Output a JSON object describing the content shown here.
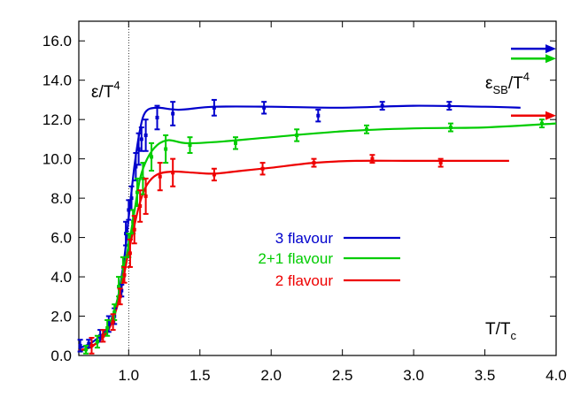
{
  "chart_data": {
    "type": "line",
    "title": "",
    "xlabel": "T/T_c",
    "ylabel": "ε/T^4",
    "xlim": [
      0.65,
      4.0
    ],
    "ylim": [
      0.0,
      17.0
    ],
    "x_ticks": [
      "1.0",
      "1.5",
      "2.0",
      "2.5",
      "3.0",
      "3.5",
      "4.0"
    ],
    "x_tick_values": [
      1.0,
      1.5,
      2.0,
      2.5,
      3.0,
      3.5,
      4.0
    ],
    "y_ticks": [
      "0.0",
      "2.0",
      "4.0",
      "6.0",
      "8.0",
      "10.0",
      "12.0",
      "14.0",
      "16.0"
    ],
    "y_tick_values": [
      0,
      2,
      4,
      6,
      8,
      10,
      12,
      14,
      16
    ],
    "tc_line": 1.0,
    "sb_label": {
      "main": "ε",
      "sub": "SB",
      "tail": "/T",
      "sup": "4"
    },
    "y_label_parts": {
      "main": "ε/T",
      "sup": "4"
    },
    "x_label_parts": {
      "main": "T/T",
      "sub": "c"
    },
    "legend_position": "center",
    "series": [
      {
        "name": "3 flavour",
        "color": "#0000cc",
        "sb_limit": 15.6,
        "curve": [
          [
            0.65,
            0.35
          ],
          [
            0.75,
            0.7
          ],
          [
            0.85,
            1.4
          ],
          [
            0.92,
            2.8
          ],
          [
            0.97,
            5.0
          ],
          [
            1.0,
            7.0
          ],
          [
            1.04,
            9.6
          ],
          [
            1.08,
            11.5
          ],
          [
            1.12,
            12.4
          ],
          [
            1.2,
            12.6
          ],
          [
            1.35,
            12.5
          ],
          [
            1.6,
            12.65
          ],
          [
            2.0,
            12.65
          ],
          [
            2.5,
            12.6
          ],
          [
            3.0,
            12.7
          ],
          [
            3.5,
            12.65
          ],
          [
            3.75,
            12.6
          ]
        ],
        "points": [
          {
            "x": 0.66,
            "y": 0.5,
            "err": 0.3
          },
          {
            "x": 0.72,
            "y": 0.6,
            "err": 0.2
          },
          {
            "x": 0.8,
            "y": 1.0,
            "err": 0.3
          },
          {
            "x": 0.86,
            "y": 1.6,
            "err": 0.4
          },
          {
            "x": 0.9,
            "y": 2.0,
            "err": 0.4
          },
          {
            "x": 0.95,
            "y": 3.3,
            "err": 0.3
          },
          {
            "x": 0.98,
            "y": 6.2,
            "err": 0.6
          },
          {
            "x": 1.0,
            "y": 7.4,
            "err": 0.5
          },
          {
            "x": 1.02,
            "y": 8.0,
            "err": 0.6
          },
          {
            "x": 1.05,
            "y": 9.6,
            "err": 0.7
          },
          {
            "x": 1.07,
            "y": 10.5,
            "err": 0.8
          },
          {
            "x": 1.09,
            "y": 11.0,
            "err": 0.6
          },
          {
            "x": 1.12,
            "y": 11.2,
            "err": 0.8
          },
          {
            "x": 1.2,
            "y": 12.1,
            "err": 0.6
          },
          {
            "x": 1.31,
            "y": 12.3,
            "err": 0.6
          },
          {
            "x": 1.6,
            "y": 12.6,
            "err": 0.4
          },
          {
            "x": 1.95,
            "y": 12.6,
            "err": 0.3
          },
          {
            "x": 2.33,
            "y": 12.2,
            "err": 0.3
          },
          {
            "x": 2.78,
            "y": 12.7,
            "err": 0.2
          },
          {
            "x": 3.25,
            "y": 12.7,
            "err": 0.2
          }
        ]
      },
      {
        "name": "2+1 flavour",
        "color": "#00cc00",
        "sb_limit": 15.1,
        "curve": [
          [
            0.65,
            0.2
          ],
          [
            0.75,
            0.5
          ],
          [
            0.85,
            1.3
          ],
          [
            0.92,
            2.8
          ],
          [
            0.97,
            4.6
          ],
          [
            1.0,
            5.6
          ],
          [
            1.04,
            7.3
          ],
          [
            1.08,
            9.0
          ],
          [
            1.13,
            10.0
          ],
          [
            1.2,
            10.7
          ],
          [
            1.28,
            10.95
          ],
          [
            1.4,
            10.8
          ],
          [
            1.6,
            10.85
          ],
          [
            2.0,
            11.1
          ],
          [
            2.5,
            11.4
          ],
          [
            3.0,
            11.55
          ],
          [
            3.5,
            11.6
          ],
          [
            4.0,
            11.8
          ]
        ],
        "points": [
          {
            "x": 0.7,
            "y": 0.3,
            "err": 0.2
          },
          {
            "x": 0.78,
            "y": 0.7,
            "err": 0.3
          },
          {
            "x": 0.85,
            "y": 1.4,
            "err": 0.4
          },
          {
            "x": 0.9,
            "y": 2.2,
            "err": 0.4
          },
          {
            "x": 0.93,
            "y": 3.5,
            "err": 0.5
          },
          {
            "x": 0.96,
            "y": 4.5,
            "err": 0.5
          },
          {
            "x": 1.0,
            "y": 5.6,
            "err": 0.6
          },
          {
            "x": 1.03,
            "y": 6.8,
            "err": 0.6
          },
          {
            "x": 1.06,
            "y": 8.3,
            "err": 0.7
          },
          {
            "x": 1.1,
            "y": 9.0,
            "err": 0.8
          },
          {
            "x": 1.16,
            "y": 10.1,
            "err": 0.7
          },
          {
            "x": 1.26,
            "y": 10.5,
            "err": 0.7
          },
          {
            "x": 1.43,
            "y": 10.7,
            "err": 0.4
          },
          {
            "x": 1.75,
            "y": 10.8,
            "err": 0.3
          },
          {
            "x": 2.18,
            "y": 11.2,
            "err": 0.3
          },
          {
            "x": 2.67,
            "y": 11.5,
            "err": 0.2
          },
          {
            "x": 3.26,
            "y": 11.6,
            "err": 0.2
          },
          {
            "x": 3.9,
            "y": 11.8,
            "err": 0.2
          }
        ]
      },
      {
        "name": "2 flavour",
        "color": "#ee0000",
        "sb_limit": 12.2,
        "curve": [
          [
            0.65,
            0.25
          ],
          [
            0.75,
            0.5
          ],
          [
            0.85,
            1.2
          ],
          [
            0.92,
            2.5
          ],
          [
            0.97,
            4.2
          ],
          [
            1.0,
            5.3
          ],
          [
            1.04,
            6.6
          ],
          [
            1.08,
            7.8
          ],
          [
            1.13,
            8.7
          ],
          [
            1.2,
            9.2
          ],
          [
            1.3,
            9.35
          ],
          [
            1.45,
            9.3
          ],
          [
            1.6,
            9.25
          ],
          [
            1.8,
            9.4
          ],
          [
            2.0,
            9.55
          ],
          [
            2.3,
            9.8
          ],
          [
            2.6,
            9.9
          ],
          [
            3.0,
            9.9
          ],
          [
            3.5,
            9.9
          ],
          [
            3.67,
            9.9
          ]
        ],
        "points": [
          {
            "x": 0.74,
            "y": 0.5,
            "err": 0.4
          },
          {
            "x": 0.82,
            "y": 1.0,
            "err": 0.3
          },
          {
            "x": 0.89,
            "y": 1.7,
            "err": 0.4
          },
          {
            "x": 0.94,
            "y": 3.0,
            "err": 0.4
          },
          {
            "x": 0.97,
            "y": 4.1,
            "err": 0.4
          },
          {
            "x": 1.01,
            "y": 5.2,
            "err": 0.7
          },
          {
            "x": 1.04,
            "y": 6.4,
            "err": 0.7
          },
          {
            "x": 1.08,
            "y": 7.6,
            "err": 0.8
          },
          {
            "x": 1.12,
            "y": 8.1,
            "err": 0.9
          },
          {
            "x": 1.22,
            "y": 9.1,
            "err": 0.7
          },
          {
            "x": 1.31,
            "y": 9.3,
            "err": 0.7
          },
          {
            "x": 1.6,
            "y": 9.2,
            "err": 0.3
          },
          {
            "x": 1.94,
            "y": 9.5,
            "err": 0.3
          },
          {
            "x": 2.3,
            "y": 9.8,
            "err": 0.2
          },
          {
            "x": 2.71,
            "y": 10.0,
            "err": 0.2
          },
          {
            "x": 3.19,
            "y": 9.8,
            "err": 0.2
          }
        ]
      }
    ]
  }
}
